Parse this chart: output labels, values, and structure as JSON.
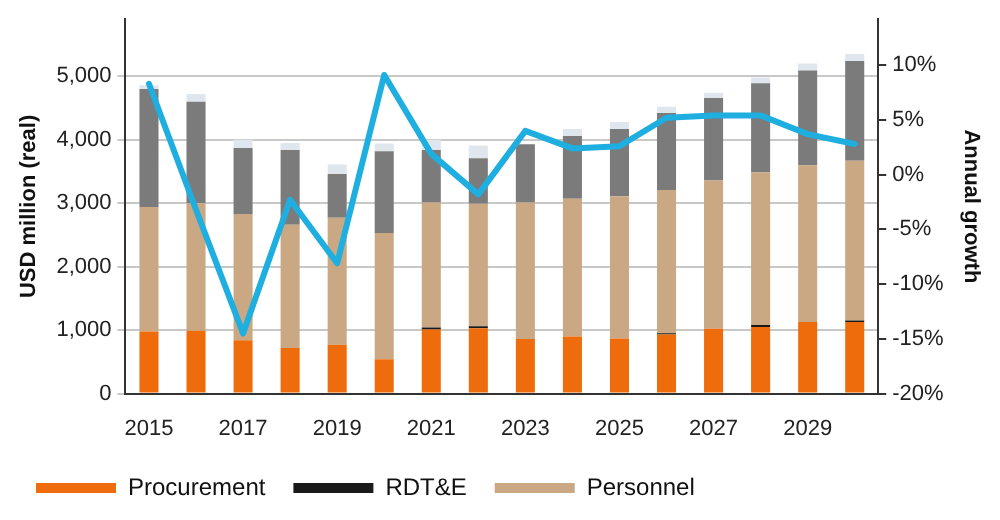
{
  "chart_data": {
    "type": "bar",
    "stacked": true,
    "categories": [
      "2015",
      null,
      "2017",
      null,
      "2019",
      null,
      "2021",
      null,
      "2023",
      null,
      "2025",
      null,
      "2027",
      null,
      "2029",
      null
    ],
    "ylabel": "USD million (real)",
    "y2label": "Annual growth",
    "ylim": [
      0,
      5900
    ],
    "yticks": [
      {
        "value": 0,
        "label": "0"
      },
      {
        "value": 1000,
        "label": "1,000"
      },
      {
        "value": 2000,
        "label": "2,000"
      },
      {
        "value": 3000,
        "label": "3,000"
      },
      {
        "value": 4000,
        "label": "4,000"
      },
      {
        "value": 5000,
        "label": "5,000"
      }
    ],
    "y2lim": [
      -20,
      14.2
    ],
    "y2ticks": [
      {
        "value": -20,
        "label": "-20%"
      },
      {
        "value": -15,
        "label": "-15%"
      },
      {
        "value": -10,
        "label": "-10%"
      },
      {
        "value": -5,
        "label": "-5%"
      },
      {
        "value": 0,
        "label": "0%"
      },
      {
        "value": 5,
        "label": "5%"
      },
      {
        "value": 10,
        "label": "10%"
      }
    ],
    "grid": "y",
    "legend": "bottom",
    "series": [
      {
        "name": "Procurement",
        "color": "#ee6c0c",
        "values": [
          980,
          990,
          840,
          720,
          770,
          540,
          1010,
          1030,
          860,
          900,
          870,
          930,
          1020,
          1050,
          1130,
          1130
        ]
      },
      {
        "name": "RDT&E",
        "color": "#1a1a1a",
        "values": [
          0,
          0,
          0,
          0,
          0,
          0,
          30,
          30,
          0,
          0,
          0,
          20,
          0,
          30,
          0,
          20
        ]
      },
      {
        "name": "Personnel",
        "color": "#c9a883",
        "values": [
          1960,
          2010,
          1990,
          1940,
          2000,
          1990,
          1970,
          1930,
          2150,
          2170,
          2240,
          2260,
          2340,
          2410,
          2470,
          2520
        ]
      },
      {
        "color": "#7b7b7b",
        "values": [
          1860,
          1600,
          1040,
          1180,
          690,
          1290,
          830,
          720,
          920,
          990,
          1060,
          1210,
          1300,
          1400,
          1490,
          1570
        ]
      },
      {
        "color": "#dfe6ee",
        "values": [
          60,
          120,
          130,
          110,
          150,
          120,
          160,
          200,
          null,
          110,
          110,
          100,
          80,
          90,
          110,
          110
        ]
      },
      {
        "type": "line",
        "axis": "y2",
        "color": "#1eaee0",
        "marker": "none",
        "values": [
          8.3,
          -3.2,
          -14.5,
          -2.3,
          -8.1,
          9.1,
          1.9,
          -1.8,
          4.0,
          2.4,
          2.6,
          5.2,
          5.4,
          5.4,
          3.7,
          2.8
        ]
      }
    ]
  }
}
